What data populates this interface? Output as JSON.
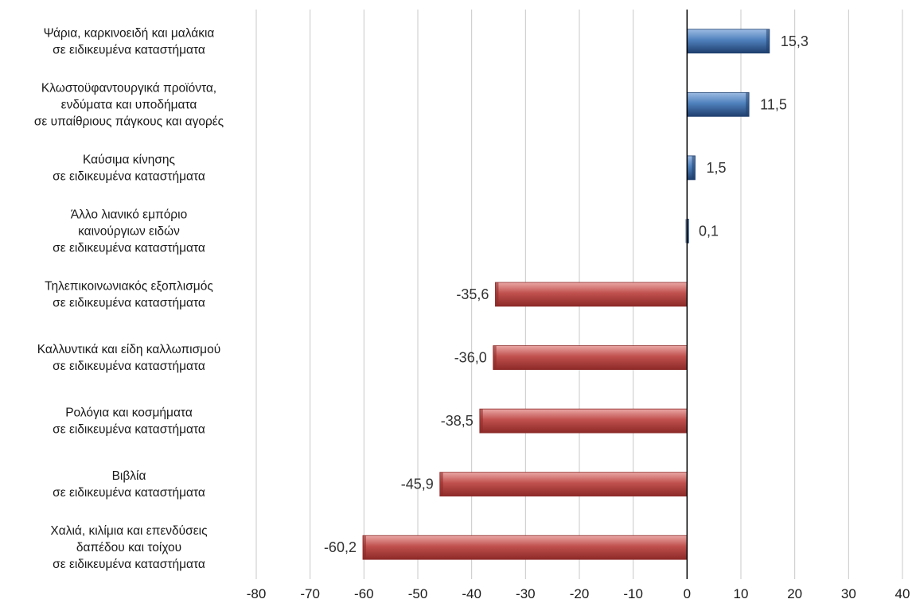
{
  "chart_data": {
    "type": "bar",
    "orientation": "horizontal",
    "categories": [
      [
        "Ψάρια, καρκινοειδή και μαλάκια",
        "σε ειδικευμένα καταστήματα"
      ],
      [
        "Κλωστοϋφαντουργικά προϊόντα,",
        "ενδύματα και υποδήματα",
        "σε υπαίθριους πάγκους και αγορές"
      ],
      [
        "Καύσιμα κίνησης",
        "σε ειδικευμένα καταστήματα"
      ],
      [
        "Άλλο λιανικό εμπόριο",
        "καινούργιων ειδών",
        "σε ειδικευμένα καταστήματα"
      ],
      [
        "Τηλεπικοινωνιακός εξοπλισμός",
        "σε ειδικευμένα καταστήματα"
      ],
      [
        "Καλλυντικά και είδη καλλωπισμού",
        "σε ειδικευμένα καταστήματα"
      ],
      [
        "Ρολόγια και κοσμήματα",
        "σε ειδικευμένα καταστήματα"
      ],
      [
        "Βιβλία",
        "σε ειδικευμένα καταστήματα"
      ],
      [
        "Χαλιά, κιλίμια και επενδύσεις",
        "δαπέδου και τοίχου",
        "σε ειδικευμένα καταστήματα"
      ]
    ],
    "values": [
      15.3,
      11.5,
      1.5,
      0.1,
      -35.6,
      -36.0,
      -38.5,
      -45.9,
      -60.2
    ],
    "value_labels": [
      "15,3",
      "11,5",
      "1,5",
      "0,1",
      "-35,6",
      "-36,0",
      "-38,5",
      "-45,9",
      "-60,2"
    ],
    "xlim": [
      -80,
      40
    ],
    "xticks": [
      -80,
      -70,
      -60,
      -50,
      -40,
      -30,
      -20,
      -10,
      0,
      10,
      20,
      30,
      40
    ],
    "xtick_labels": [
      "-80",
      "-70",
      "-60",
      "-50",
      "-40",
      "-30",
      "-20",
      "-10",
      "0",
      "10",
      "20",
      "30",
      "40"
    ],
    "grid": "vertical",
    "colors": {
      "positive": "#4f81bd",
      "positive_dark": "#1f3f6e",
      "negative": "#c0504d",
      "negative_dark": "#8c2a28",
      "grid": "#c8c8c8",
      "axis": "#000000"
    },
    "title": "",
    "xlabel": "",
    "ylabel": ""
  }
}
